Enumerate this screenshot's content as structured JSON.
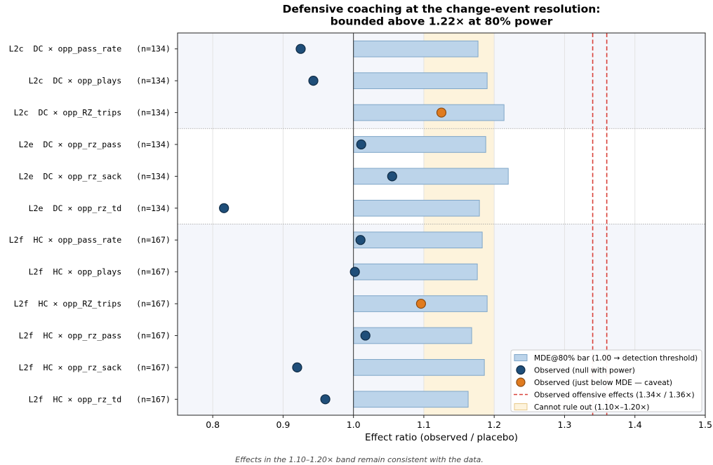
{
  "chart_data": {
    "type": "scatter",
    "title": [
      "Defensive coaching at the change-event resolution:",
      "bounded above 1.22× at 80% power"
    ],
    "xlabel": "Effect ratio (observed / placebo)",
    "xlim": [
      0.75,
      1.5
    ],
    "xticks": [
      "0.8",
      "0.9",
      "1.0",
      "1.1",
      "1.2",
      "1.3",
      "1.4",
      "1.5"
    ],
    "xtick_values": [
      0.8,
      0.9,
      1.0,
      1.1,
      1.2,
      1.3,
      1.4,
      1.5
    ],
    "grid": true,
    "band": {
      "from": 1.1,
      "to": 1.2,
      "color": "#fdf3dc"
    },
    "reference_lines": [
      1.34,
      1.36
    ],
    "baseline": 1.0,
    "group_backgrounds": [
      "#f4f6fb",
      "#ffffff",
      "#f4f6fb"
    ],
    "colors": {
      "bar_fill": "#bcd4ea",
      "bar_stroke": "#7fa6c8",
      "null_point": "#1f4e79",
      "caveat_point": "#e07b1f",
      "ref_line": "#d9423a",
      "band_fill": "#fdf3dc",
      "band_stroke": "#e8c98a"
    },
    "rows": [
      {
        "label": "L2c  DC × opp_pass_rate   (n=134)",
        "mde": 1.177,
        "observed": 0.925,
        "status": "null",
        "group": 0
      },
      {
        "label": "L2c  DC × opp_plays   (n=134)",
        "mde": 1.19,
        "observed": 0.943,
        "status": "null",
        "group": 0
      },
      {
        "label": "L2c  DC × opp_RZ_trips   (n=134)",
        "mde": 1.214,
        "observed": 1.125,
        "status": "caveat",
        "group": 0
      },
      {
        "label": "L2e  DC × opp_rz_pass   (n=134)",
        "mde": 1.188,
        "observed": 1.011,
        "status": "null",
        "group": 1
      },
      {
        "label": "L2e  DC × opp_rz_sack   (n=134)",
        "mde": 1.22,
        "observed": 1.055,
        "status": "null",
        "group": 1
      },
      {
        "label": "L2e  DC × opp_rz_td   (n=134)",
        "mde": 1.179,
        "observed": 0.816,
        "status": "null",
        "group": 1
      },
      {
        "label": "L2f  HC × opp_pass_rate   (n=167)",
        "mde": 1.183,
        "observed": 1.01,
        "status": "null",
        "group": 2
      },
      {
        "label": "L2f  HC × opp_plays   (n=167)",
        "mde": 1.176,
        "observed": 1.002,
        "status": "null",
        "group": 2
      },
      {
        "label": "L2f  HC × opp_RZ_trips   (n=167)",
        "mde": 1.19,
        "observed": 1.096,
        "status": "caveat",
        "group": 2
      },
      {
        "label": "L2f  HC × opp_rz_pass   (n=167)",
        "mde": 1.168,
        "observed": 1.017,
        "status": "null",
        "group": 2
      },
      {
        "label": "L2f  HC × opp_rz_sack   (n=167)",
        "mde": 1.186,
        "observed": 0.92,
        "status": "null",
        "group": 2
      },
      {
        "label": "L2f  HC × opp_rz_td   (n=167)",
        "mde": 1.163,
        "observed": 0.96,
        "status": "null",
        "group": 2
      }
    ],
    "legend": {
      "placement": "bottom-right",
      "items": [
        {
          "kind": "bar",
          "label": "MDE@80% bar (1.00 → detection threshold)"
        },
        {
          "kind": "null",
          "label": "Observed (null with power)"
        },
        {
          "kind": "caveat",
          "label": "Observed (just below MDE — caveat)"
        },
        {
          "kind": "line",
          "label": "Observed offensive effects (1.34× / 1.36×)"
        },
        {
          "kind": "band",
          "label": "Cannot rule out (1.10×–1.20×)"
        }
      ]
    },
    "caption": "Effects in the 1.10–1.20× band remain consistent with the data."
  }
}
